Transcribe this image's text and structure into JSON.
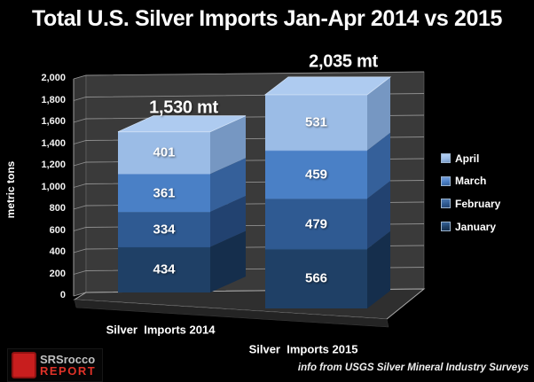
{
  "chart_data": {
    "type": "bar",
    "stacked": true,
    "projection": "3d",
    "title": "Total U.S. Silver Imports Jan-Apr 2014 vs 2015",
    "ylabel": "metric tons",
    "ylim": [
      0,
      2000
    ],
    "ytick_step": 200,
    "ytick_labels": [
      "0",
      "200",
      "400",
      "600",
      "800",
      "1,000",
      "1,200",
      "1,400",
      "1,600",
      "1,800",
      "2,000"
    ],
    "categories": [
      "Silver  Imports 2014",
      "Silver  Imports 2015"
    ],
    "totals": [
      1530,
      2035
    ],
    "total_labels": [
      "1,530 mt",
      "2,035 mt"
    ],
    "series": [
      {
        "name": "January",
        "values": [
          434,
          566
        ],
        "color": "#1f4066",
        "side": "#152e4c",
        "top": "#2f5a8c"
      },
      {
        "name": "February",
        "values": [
          334,
          479
        ],
        "color": "#2f5a92",
        "side": "#224270",
        "top": "#4470a8"
      },
      {
        "name": "March",
        "values": [
          361,
          459
        ],
        "color": "#4a80c6",
        "side": "#35609a",
        "top": "#6b97d6"
      },
      {
        "name": "April",
        "values": [
          401,
          531
        ],
        "color": "#9bbce6",
        "side": "#7697c2",
        "top": "#aecbf0"
      }
    ],
    "legend_order": [
      "April",
      "March",
      "February",
      "January"
    ],
    "legend_position": "right",
    "grid": true,
    "colors": {
      "background": "#000000",
      "wall": "#3a3a3a",
      "left_wall": "#343434",
      "floor": "#2f2f2f",
      "floor_slab": "#242424",
      "gridline": "#9c9c9c",
      "text": "#ffffff"
    }
  },
  "footer": {
    "source": "info from USGS Silver Mineral Industry Surveys"
  },
  "logo": {
    "line1": "SRSrocco",
    "line2": "REPORT"
  }
}
